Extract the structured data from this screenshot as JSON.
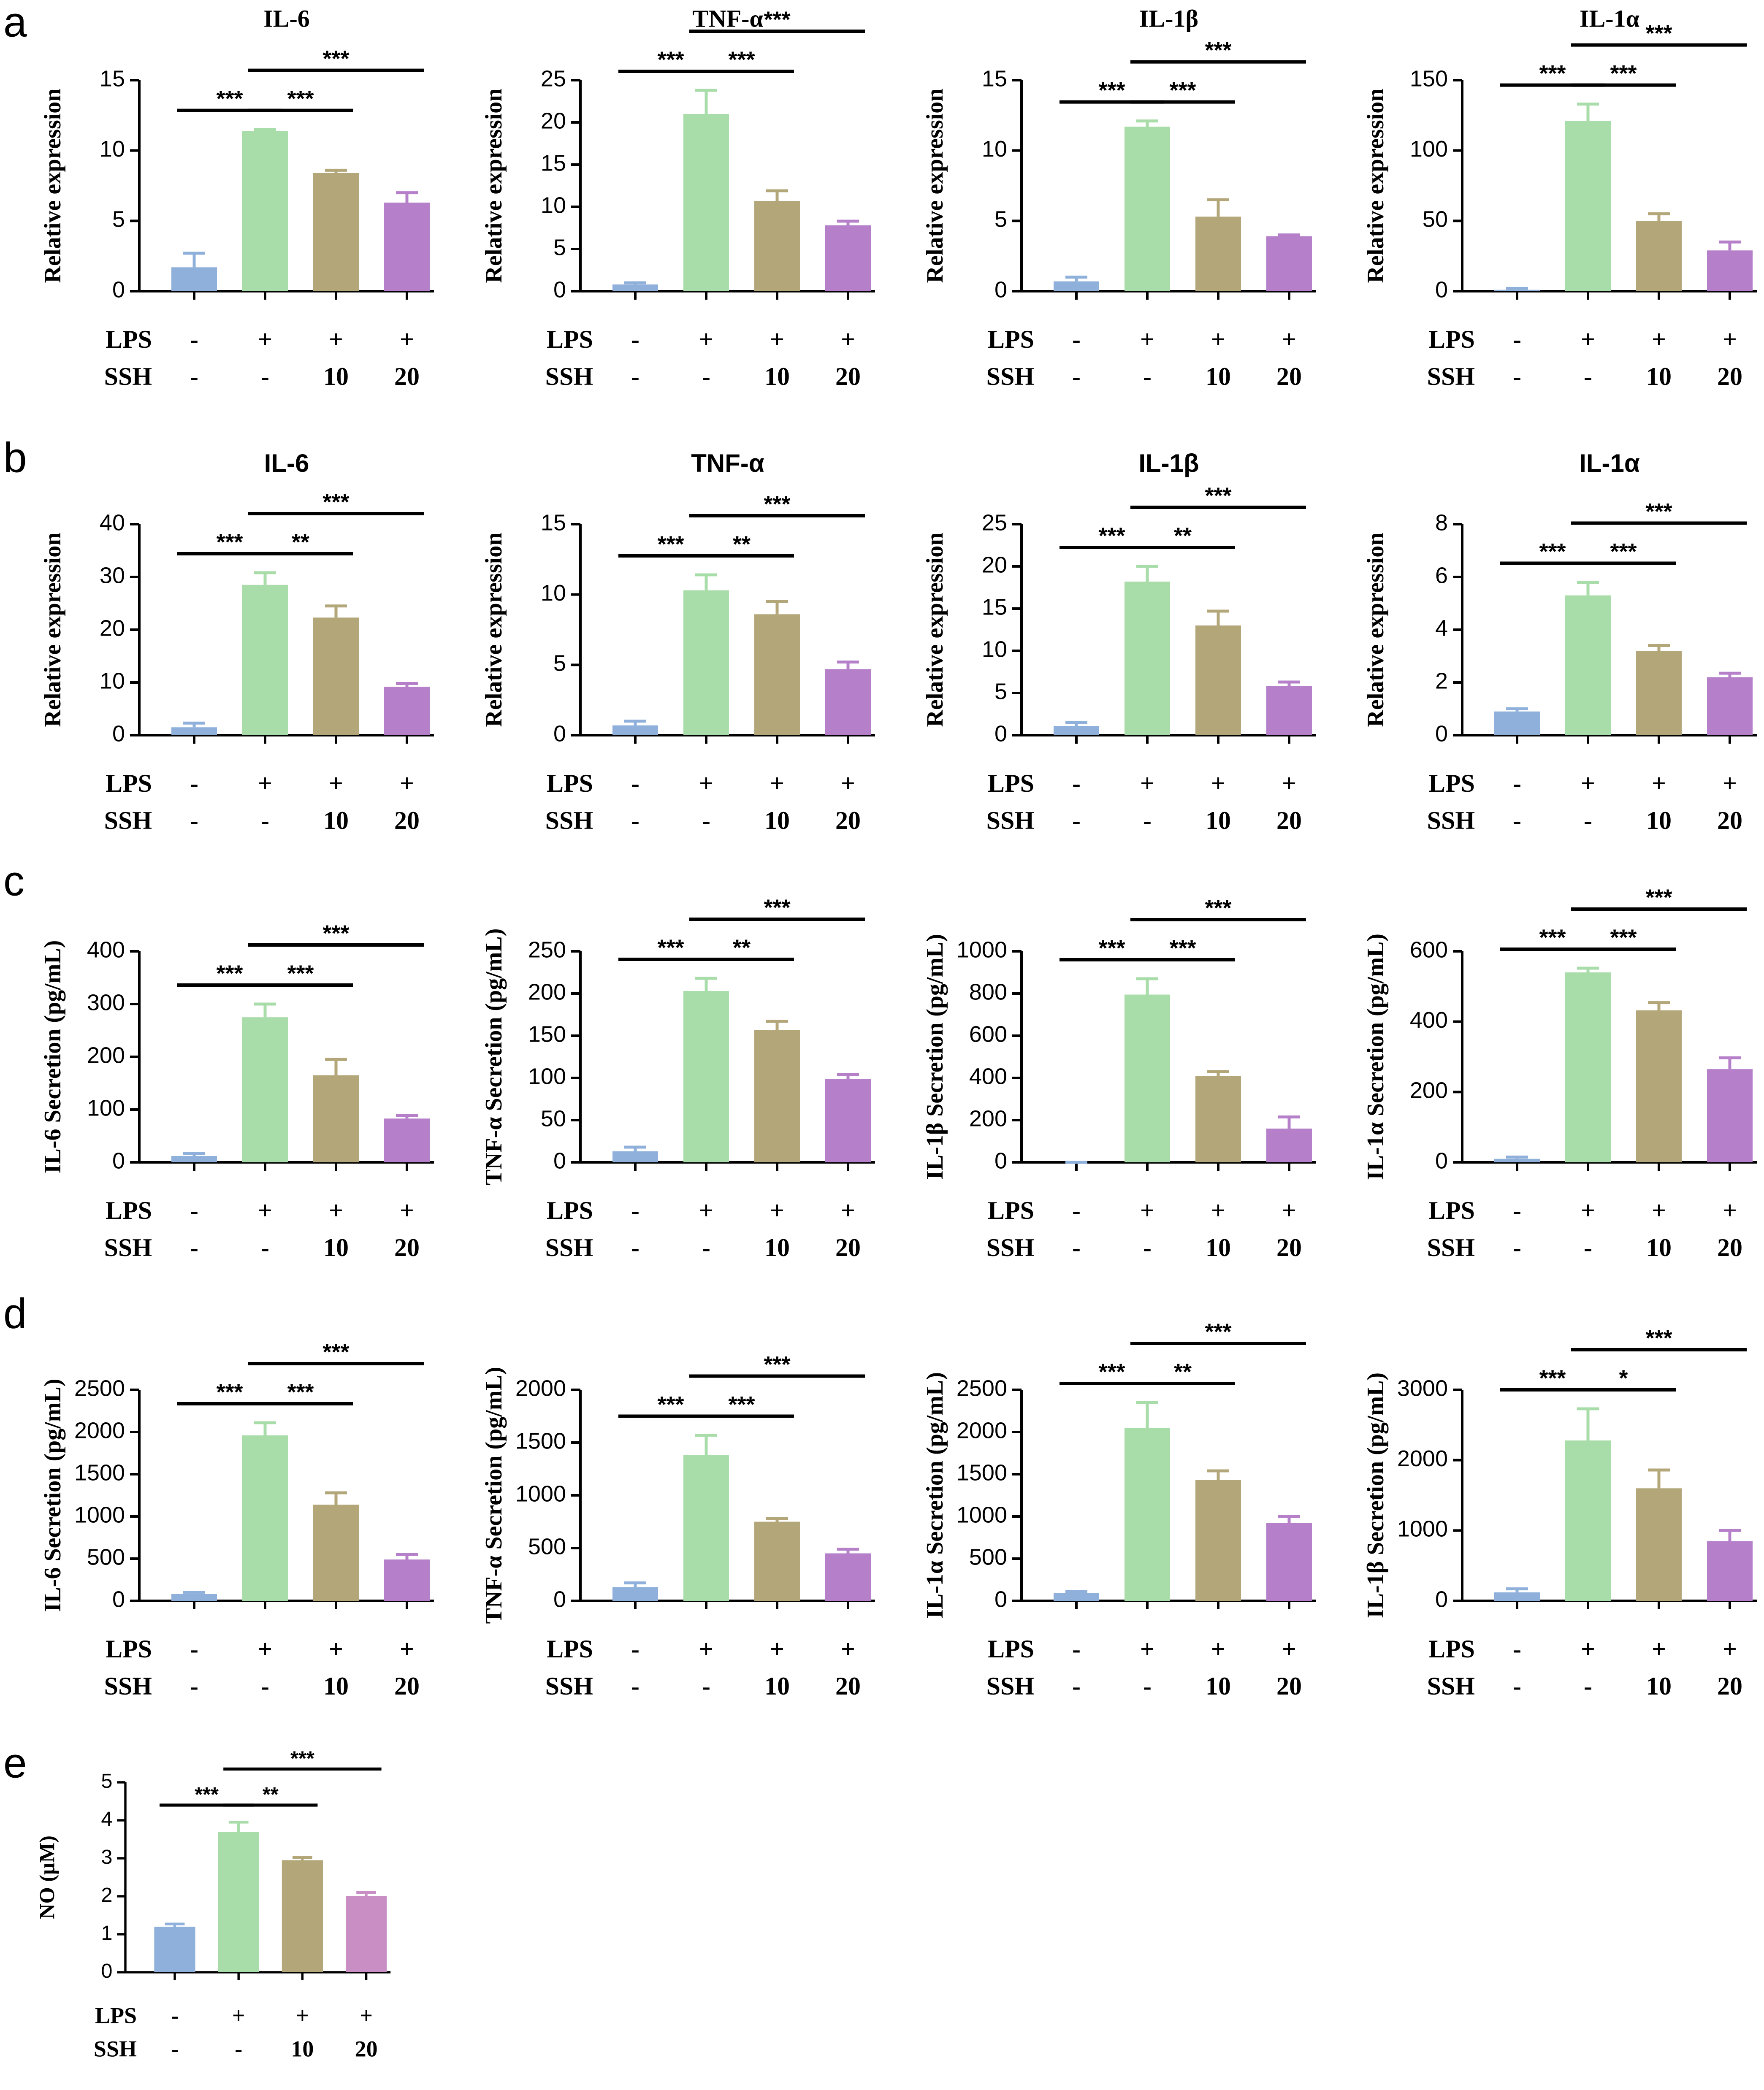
{
  "panel_labels": [
    "a",
    "b",
    "c",
    "d",
    "e"
  ],
  "chart_data": [
    {
      "type": "bar",
      "title": "IL-6",
      "y_label": "Relative expression",
      "ylim": [
        0,
        15
      ],
      "yticks": [
        0,
        5,
        10,
        15
      ],
      "values": [
        1.7,
        11.4,
        8.4,
        6.3
      ],
      "errors": [
        1.0,
        0.1,
        0.2,
        0.7
      ],
      "colors": [
        "#8fb0da",
        "#a8dca8",
        "#b3a77a",
        "#b580c9"
      ],
      "conditions": [
        {
          "name": "LPS",
          "values": [
            "-",
            "+",
            "+",
            "+"
          ]
        },
        {
          "name": "SSH",
          "values": [
            "-",
            "-",
            "10",
            "20"
          ]
        }
      ],
      "comparisons": [
        {
          "bars": [
            0,
            1
          ],
          "label": "***"
        },
        {
          "bars": [
            1,
            2
          ],
          "label": "***"
        },
        {
          "bars": [
            1,
            3
          ],
          "label": "***"
        }
      ]
    },
    {
      "type": "bar",
      "title": "TNF-α",
      "y_label": "Relative expression",
      "ylim": [
        0,
        25
      ],
      "yticks": [
        0,
        5,
        10,
        15,
        20,
        25
      ],
      "values": [
        0.8,
        21,
        10.7,
        7.8
      ],
      "errors": [
        0.2,
        2.8,
        1.2,
        0.5
      ],
      "colors": [
        "#8fb0da",
        "#a8dca8",
        "#b3a77a",
        "#b580c9"
      ],
      "conditions": [
        {
          "name": "LPS",
          "values": [
            "-",
            "+",
            "+",
            "+"
          ]
        },
        {
          "name": "SSH",
          "values": [
            "-",
            "-",
            "10",
            "20"
          ]
        }
      ],
      "comparisons": [
        {
          "bars": [
            0,
            1
          ],
          "label": "***"
        },
        {
          "bars": [
            1,
            2
          ],
          "label": "***"
        },
        {
          "bars": [
            1,
            3
          ],
          "label": "***"
        }
      ]
    },
    {
      "type": "bar",
      "title": "IL-1β",
      "y_label": "Relative expression",
      "ylim": [
        0,
        15
      ],
      "yticks": [
        0,
        5,
        10,
        15
      ],
      "values": [
        0.7,
        11.7,
        5.3,
        3.9
      ],
      "errors": [
        0.3,
        0.4,
        1.2,
        0.1
      ],
      "colors": [
        "#8fb0da",
        "#a8dca8",
        "#b3a77a",
        "#b580c9"
      ],
      "conditions": [
        {
          "name": "LPS",
          "values": [
            "-",
            "+",
            "+",
            "+"
          ]
        },
        {
          "name": "SSH",
          "values": [
            "-",
            "-",
            "10",
            "20"
          ]
        }
      ],
      "comparisons": [
        {
          "bars": [
            0,
            1
          ],
          "label": "***"
        },
        {
          "bars": [
            1,
            2
          ],
          "label": "***"
        },
        {
          "bars": [
            1,
            3
          ],
          "label": "***"
        }
      ]
    },
    {
      "type": "bar",
      "title": "IL-1α",
      "y_label": "Relative expression",
      "ylim": [
        0,
        150
      ],
      "yticks": [
        0,
        50,
        100,
        150
      ],
      "values": [
        1,
        121,
        50,
        29
      ],
      "errors": [
        1,
        12,
        5,
        6
      ],
      "colors": [
        "#8fb0da",
        "#a8dca8",
        "#b3a77a",
        "#b580c9"
      ],
      "conditions": [
        {
          "name": "LPS",
          "values": [
            "-",
            "+",
            "+",
            "+"
          ]
        },
        {
          "name": "SSH",
          "values": [
            "-",
            "-",
            "10",
            "20"
          ]
        }
      ],
      "comparisons": [
        {
          "bars": [
            0,
            1
          ],
          "label": "***"
        },
        {
          "bars": [
            1,
            2
          ],
          "label": "***"
        },
        {
          "bars": [
            1,
            3
          ],
          "label": "***"
        }
      ]
    },
    {
      "type": "bar",
      "title": "IL-6",
      "y_label": "Relative expression",
      "ylim": [
        0,
        40
      ],
      "yticks": [
        0,
        10,
        20,
        30,
        40
      ],
      "values": [
        1.5,
        28.5,
        22.3,
        9.2
      ],
      "errors": [
        0.8,
        2.3,
        2.2,
        0.6
      ],
      "colors": [
        "#8fb0da",
        "#a8dca8",
        "#b3a77a",
        "#b580c9"
      ],
      "conditions": [
        {
          "name": "LPS",
          "values": [
            "-",
            "+",
            "+",
            "+"
          ]
        },
        {
          "name": "SSH",
          "values": [
            "-",
            "-",
            "10",
            "20"
          ]
        }
      ],
      "comparisons": [
        {
          "bars": [
            0,
            1
          ],
          "label": "***"
        },
        {
          "bars": [
            1,
            2
          ],
          "label": "**"
        },
        {
          "bars": [
            1,
            3
          ],
          "label": "***"
        }
      ]
    },
    {
      "type": "bar",
      "title": "TNF-α",
      "y_label": "Relative expression",
      "ylim": [
        0,
        15
      ],
      "yticks": [
        0,
        5,
        10,
        15
      ],
      "values": [
        0.7,
        10.3,
        8.6,
        4.7
      ],
      "errors": [
        0.3,
        1.1,
        0.9,
        0.5
      ],
      "colors": [
        "#8fb0da",
        "#a8dca8",
        "#b3a77a",
        "#b580c9"
      ],
      "conditions": [
        {
          "name": "LPS",
          "values": [
            "-",
            "+",
            "+",
            "+"
          ]
        },
        {
          "name": "SSH",
          "values": [
            "-",
            "-",
            "10",
            "20"
          ]
        }
      ],
      "comparisons": [
        {
          "bars": [
            0,
            1
          ],
          "label": "***"
        },
        {
          "bars": [
            1,
            2
          ],
          "label": "**"
        },
        {
          "bars": [
            1,
            3
          ],
          "label": "***"
        }
      ]
    },
    {
      "type": "bar",
      "title": "IL-1β",
      "y_label": "Relative expression",
      "ylim": [
        0,
        25
      ],
      "yticks": [
        0,
        5,
        10,
        15,
        20,
        25
      ],
      "values": [
        1.1,
        18.2,
        13.0,
        5.8
      ],
      "errors": [
        0.4,
        1.8,
        1.7,
        0.5
      ],
      "colors": [
        "#8fb0da",
        "#a8dca8",
        "#b3a77a",
        "#b580c9"
      ],
      "conditions": [
        {
          "name": "LPS",
          "values": [
            "-",
            "+",
            "+",
            "+"
          ]
        },
        {
          "name": "SSH",
          "values": [
            "-",
            "-",
            "10",
            "20"
          ]
        }
      ],
      "comparisons": [
        {
          "bars": [
            0,
            1
          ],
          "label": "***"
        },
        {
          "bars": [
            1,
            2
          ],
          "label": "**"
        },
        {
          "bars": [
            1,
            3
          ],
          "label": "***"
        }
      ]
    },
    {
      "type": "bar",
      "title": "IL-1α",
      "y_label": "Relative expression",
      "ylim": [
        0,
        8
      ],
      "yticks": [
        0,
        2,
        4,
        6,
        8
      ],
      "values": [
        0.9,
        5.3,
        3.2,
        2.2
      ],
      "errors": [
        0.1,
        0.5,
        0.2,
        0.15
      ],
      "colors": [
        "#8fb0da",
        "#a8dca8",
        "#b3a77a",
        "#b580c9"
      ],
      "conditions": [
        {
          "name": "LPS",
          "values": [
            "-",
            "+",
            "+",
            "+"
          ]
        },
        {
          "name": "SSH",
          "values": [
            "-",
            "-",
            "10",
            "20"
          ]
        }
      ],
      "comparisons": [
        {
          "bars": [
            0,
            1
          ],
          "label": "***"
        },
        {
          "bars": [
            1,
            2
          ],
          "label": "***"
        },
        {
          "bars": [
            1,
            3
          ],
          "label": "***"
        }
      ]
    },
    {
      "type": "bar",
      "y_label": "IL-6 Secretion (pg/mL)",
      "ylim": [
        0,
        400
      ],
      "yticks": [
        0,
        100,
        200,
        300,
        400
      ],
      "values": [
        12,
        275,
        165,
        83
      ],
      "errors": [
        5,
        25,
        30,
        6
      ],
      "colors": [
        "#8fb0da",
        "#a8dca8",
        "#b3a77a",
        "#b580c9"
      ],
      "conditions": [
        {
          "name": "LPS",
          "values": [
            "-",
            "+",
            "+",
            "+"
          ]
        },
        {
          "name": "SSH",
          "values": [
            "-",
            "-",
            "10",
            "20"
          ]
        }
      ],
      "comparisons": [
        {
          "bars": [
            0,
            1
          ],
          "label": "***"
        },
        {
          "bars": [
            1,
            2
          ],
          "label": "***"
        },
        {
          "bars": [
            1,
            3
          ],
          "label": "***"
        }
      ]
    },
    {
      "type": "bar",
      "y_label": "TNF-α Secretion (pg/mL)",
      "ylim": [
        0,
        250
      ],
      "yticks": [
        0,
        50,
        100,
        150,
        200,
        250
      ],
      "values": [
        13,
        203,
        157,
        99
      ],
      "errors": [
        5,
        15,
        10,
        5
      ],
      "colors": [
        "#8fb0da",
        "#a8dca8",
        "#b3a77a",
        "#b580c9"
      ],
      "conditions": [
        {
          "name": "LPS",
          "values": [
            "-",
            "+",
            "+",
            "+"
          ]
        },
        {
          "name": "SSH",
          "values": [
            "-",
            "-",
            "10",
            "20"
          ]
        }
      ],
      "comparisons": [
        {
          "bars": [
            0,
            1
          ],
          "label": "***"
        },
        {
          "bars": [
            1,
            2
          ],
          "label": "**"
        },
        {
          "bars": [
            1,
            3
          ],
          "label": "***"
        }
      ]
    },
    {
      "type": "bar",
      "y_label": "IL-1β Secretion (pg/mL)",
      "ylim": [
        0,
        1000
      ],
      "yticks": [
        0,
        200,
        400,
        600,
        800,
        1000
      ],
      "values": [
        0,
        795,
        410,
        160
      ],
      "errors": [
        0,
        75,
        20,
        55
      ],
      "colors": [
        "#8fb0da",
        "#a8dca8",
        "#b3a77a",
        "#b580c9"
      ],
      "conditions": [
        {
          "name": "LPS",
          "values": [
            "-",
            "+",
            "+",
            "+"
          ]
        },
        {
          "name": "SSH",
          "values": [
            "-",
            "-",
            "10",
            "20"
          ]
        }
      ],
      "comparisons": [
        {
          "bars": [
            0,
            1
          ],
          "label": "***"
        },
        {
          "bars": [
            1,
            2
          ],
          "label": "***"
        },
        {
          "bars": [
            1,
            3
          ],
          "label": "***"
        }
      ]
    },
    {
      "type": "bar",
      "y_label": "IL-1α Secretion (pg/mL)",
      "ylim": [
        0,
        600
      ],
      "yticks": [
        0,
        200,
        400,
        600
      ],
      "values": [
        10,
        540,
        432,
        265
      ],
      "errors": [
        5,
        12,
        22,
        32
      ],
      "colors": [
        "#8fb0da",
        "#a8dca8",
        "#b3a77a",
        "#b580c9"
      ],
      "conditions": [
        {
          "name": "LPS",
          "values": [
            "-",
            "+",
            "+",
            "+"
          ]
        },
        {
          "name": "SSH",
          "values": [
            "-",
            "-",
            "10",
            "20"
          ]
        }
      ],
      "comparisons": [
        {
          "bars": [
            0,
            1
          ],
          "label": "***"
        },
        {
          "bars": [
            1,
            2
          ],
          "label": "***"
        },
        {
          "bars": [
            1,
            3
          ],
          "label": "***"
        }
      ]
    },
    {
      "type": "bar",
      "y_label": "IL-6 Secretion (pg/mL)",
      "ylim": [
        0,
        2500
      ],
      "yticks": [
        0,
        500,
        1000,
        1500,
        2000,
        2500
      ],
      "values": [
        80,
        1960,
        1140,
        490
      ],
      "errors": [
        20,
        150,
        140,
        60
      ],
      "colors": [
        "#8fb0da",
        "#a8dca8",
        "#b3a77a",
        "#b580c9"
      ],
      "conditions": [
        {
          "name": "LPS",
          "values": [
            "-",
            "+",
            "+",
            "+"
          ]
        },
        {
          "name": "SSH",
          "values": [
            "-",
            "-",
            "10",
            "20"
          ]
        }
      ],
      "comparisons": [
        {
          "bars": [
            0,
            1
          ],
          "label": "***"
        },
        {
          "bars": [
            1,
            2
          ],
          "label": "***"
        },
        {
          "bars": [
            1,
            3
          ],
          "label": "***"
        }
      ]
    },
    {
      "type": "bar",
      "y_label": "TNF-α Secretion (pg/mL)",
      "ylim": [
        0,
        2000
      ],
      "yticks": [
        0,
        500,
        1000,
        1500,
        2000
      ],
      "values": [
        130,
        1380,
        750,
        450
      ],
      "errors": [
        40,
        190,
        30,
        40
      ],
      "colors": [
        "#8fb0da",
        "#a8dca8",
        "#b3a77a",
        "#b580c9"
      ],
      "conditions": [
        {
          "name": "LPS",
          "values": [
            "-",
            "+",
            "+",
            "+"
          ]
        },
        {
          "name": "SSH",
          "values": [
            "-",
            "-",
            "10",
            "20"
          ]
        }
      ],
      "comparisons": [
        {
          "bars": [
            0,
            1
          ],
          "label": "***"
        },
        {
          "bars": [
            1,
            2
          ],
          "label": "***"
        },
        {
          "bars": [
            1,
            3
          ],
          "label": "***"
        }
      ]
    },
    {
      "type": "bar",
      "y_label": "IL-1α Secretion (pg/mL)",
      "ylim": [
        0,
        2500
      ],
      "yticks": [
        0,
        500,
        1000,
        1500,
        2000,
        2500
      ],
      "values": [
        90,
        2050,
        1430,
        920
      ],
      "errors": [
        20,
        300,
        110,
        80
      ],
      "colors": [
        "#8fb0da",
        "#a8dca8",
        "#b3a77a",
        "#b580c9"
      ],
      "conditions": [
        {
          "name": "LPS",
          "values": [
            "-",
            "+",
            "+",
            "+"
          ]
        },
        {
          "name": "SSH",
          "values": [
            "-",
            "-",
            "10",
            "20"
          ]
        }
      ],
      "comparisons": [
        {
          "bars": [
            0,
            1
          ],
          "label": "***"
        },
        {
          "bars": [
            1,
            2
          ],
          "label": "**"
        },
        {
          "bars": [
            1,
            3
          ],
          "label": "***"
        }
      ]
    },
    {
      "type": "bar",
      "y_label": "IL-1β Secretion (pg/mL)",
      "ylim": [
        0,
        3000
      ],
      "yticks": [
        0,
        1000,
        2000,
        3000
      ],
      "values": [
        120,
        2280,
        1600,
        850
      ],
      "errors": [
        50,
        450,
        260,
        150
      ],
      "colors": [
        "#8fb0da",
        "#a8dca8",
        "#b3a77a",
        "#b580c9"
      ],
      "conditions": [
        {
          "name": "LPS",
          "values": [
            "-",
            "+",
            "+",
            "+"
          ]
        },
        {
          "name": "SSH",
          "values": [
            "-",
            "-",
            "10",
            "20"
          ]
        }
      ],
      "comparisons": [
        {
          "bars": [
            0,
            1
          ],
          "label": "***"
        },
        {
          "bars": [
            1,
            2
          ],
          "label": "*"
        },
        {
          "bars": [
            1,
            3
          ],
          "label": "***"
        }
      ]
    },
    {
      "type": "bar",
      "y_label": "NO (μM)",
      "ylim": [
        0,
        5
      ],
      "yticks": [
        0,
        1,
        2,
        3,
        4,
        5
      ],
      "values": [
        1.2,
        3.7,
        2.95,
        2.0
      ],
      "errors": [
        0.07,
        0.25,
        0.07,
        0.1
      ],
      "colors": [
        "#8fb0da",
        "#a8dca8",
        "#b3a77a",
        "#c98fc4"
      ],
      "conditions": [
        {
          "name": "LPS",
          "values": [
            "-",
            "+",
            "+",
            "+"
          ]
        },
        {
          "name": "SSH",
          "values": [
            "-",
            "-",
            "10",
            "20"
          ]
        }
      ],
      "comparisons": [
        {
          "bars": [
            0,
            1
          ],
          "label": "***"
        },
        {
          "bars": [
            1,
            2
          ],
          "label": "**"
        },
        {
          "bars": [
            1,
            3
          ],
          "label": "***"
        }
      ]
    }
  ]
}
